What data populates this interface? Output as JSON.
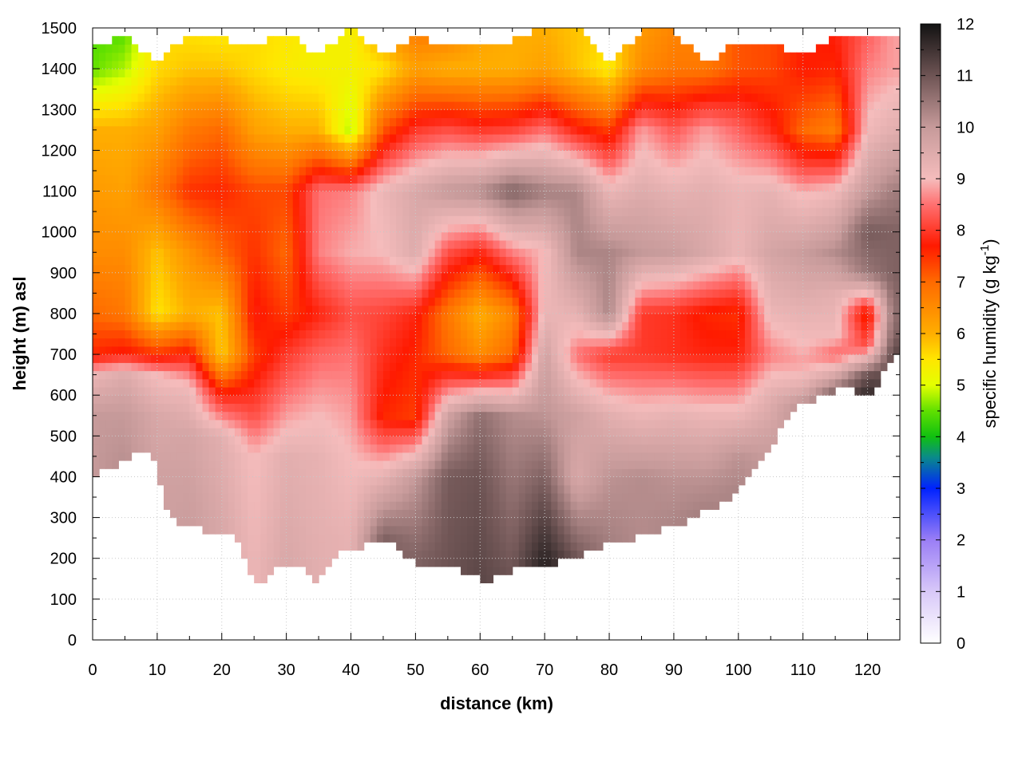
{
  "chart_data": {
    "type": "heatmap",
    "title": "",
    "xlabel": "distance (km)",
    "ylabel": "height (m) asl",
    "xlim": [
      0,
      125
    ],
    "ylim": [
      0,
      1500
    ],
    "x_ticks": [
      0,
      10,
      20,
      30,
      40,
      50,
      60,
      70,
      80,
      90,
      100,
      110,
      120
    ],
    "y_ticks": [
      0,
      100,
      200,
      300,
      400,
      500,
      600,
      700,
      800,
      900,
      1000,
      1100,
      1200,
      1300,
      1400,
      1500
    ],
    "grid": true,
    "colorbar": {
      "label_main": "specific humidity (g kg",
      "label_sup": "-1",
      "label_end": ")",
      "range": [
        0,
        12
      ],
      "ticks": [
        0,
        1,
        2,
        3,
        4,
        5,
        6,
        7,
        8,
        9,
        10,
        11,
        12
      ],
      "colormap": [
        {
          "v": 0,
          "c": "#ffffff"
        },
        {
          "v": 1,
          "c": "#d8c8f8"
        },
        {
          "v": 2,
          "c": "#9a7ef6"
        },
        {
          "v": 3,
          "c": "#0022ff"
        },
        {
          "v": 3.6,
          "c": "#0a8a8a"
        },
        {
          "v": 4,
          "c": "#10c010"
        },
        {
          "v": 4.5,
          "c": "#60e000"
        },
        {
          "v": 5,
          "c": "#e4ff00"
        },
        {
          "v": 5.5,
          "c": "#ffe600"
        },
        {
          "v": 6,
          "c": "#ffae00"
        },
        {
          "v": 7,
          "c": "#ff6a00"
        },
        {
          "v": 7.7,
          "c": "#ff1a00"
        },
        {
          "v": 8.5,
          "c": "#ff7070"
        },
        {
          "v": 9,
          "c": "#f5bcbc"
        },
        {
          "v": 10,
          "c": "#c69a9a"
        },
        {
          "v": 11,
          "c": "#6e5454"
        },
        {
          "v": 12,
          "c": "#121212"
        }
      ]
    },
    "terrain_height_m": {
      "x": [
        0,
        2,
        5,
        7,
        9,
        10,
        11,
        13,
        15,
        17,
        19,
        21,
        23,
        24,
        25,
        26,
        27,
        28,
        30,
        32,
        34,
        35,
        36,
        38,
        40,
        42,
        44,
        46,
        47,
        48,
        50,
        52,
        54,
        56,
        58,
        60,
        61,
        62,
        63,
        64,
        66,
        68,
        70,
        72,
        74,
        76,
        78,
        80,
        82,
        85,
        88,
        91,
        94,
        97,
        100,
        103,
        106,
        109,
        112,
        115,
        117,
        118,
        120,
        122,
        124
      ],
      "y": [
        400,
        420,
        440,
        460,
        450,
        430,
        330,
        290,
        270,
        275,
        255,
        265,
        230,
        170,
        150,
        140,
        150,
        185,
        190,
        180,
        150,
        145,
        170,
        210,
        225,
        230,
        250,
        240,
        225,
        205,
        190,
        180,
        170,
        175,
        165,
        155,
        140,
        145,
        165,
        160,
        175,
        185,
        190,
        190,
        195,
        210,
        225,
        235,
        240,
        255,
        270,
        285,
        310,
        330,
        370,
        430,
        500,
        575,
        590,
        610,
        630,
        605,
        600,
        640,
        700
      ]
    },
    "upper_gap_m": {
      "x": [
        0,
        5,
        7,
        10,
        14,
        18,
        24,
        30,
        35,
        40,
        45,
        50,
        55,
        60,
        65,
        70,
        75,
        80,
        85,
        90,
        95,
        100,
        105,
        110,
        115,
        120,
        124
      ],
      "y": [
        1450,
        1480,
        1440,
        1420,
        1470,
        1490,
        1450,
        1490,
        1430,
        1500,
        1430,
        1480,
        1450,
        1460,
        1470,
        1500,
        1500,
        1420,
        1490,
        1490,
        1410,
        1470,
        1460,
        1430,
        1480,
        1490,
        1480
      ]
    },
    "humidity_profiles": [
      {
        "x": 0,
        "z": [
          400,
          550,
          650,
          700,
          800,
          950,
          1100,
          1250,
          1400,
          1500
        ],
        "q": [
          10.0,
          10.0,
          9.2,
          7.6,
          7.0,
          6.5,
          6.3,
          6.0,
          4.5,
          4.4
        ]
      },
      {
        "x": 5,
        "z": [
          400,
          550,
          650,
          700,
          800,
          950,
          1100,
          1250,
          1400,
          1500
        ],
        "q": [
          10.2,
          10.0,
          9.5,
          7.8,
          6.8,
          6.5,
          6.2,
          6.0,
          4.8,
          4.4
        ]
      },
      {
        "x": 10,
        "z": [
          400,
          550,
          650,
          700,
          800,
          950,
          1100,
          1250,
          1400,
          1500
        ],
        "q": [
          9.8,
          9.6,
          9.0,
          7.5,
          5.5,
          5.8,
          6.8,
          6.2,
          5.6,
          5.6
        ]
      },
      {
        "x": 15,
        "z": [
          300,
          500,
          620,
          700,
          800,
          950,
          1100,
          1250,
          1400,
          1500
        ],
        "q": [
          9.9,
          9.7,
          9.1,
          7.8,
          6.0,
          6.4,
          7.5,
          6.8,
          5.8,
          5.5
        ]
      },
      {
        "x": 20,
        "z": [
          300,
          500,
          600,
          700,
          800,
          950,
          1100,
          1250,
          1400,
          1500
        ],
        "q": [
          9.6,
          9.4,
          7.8,
          5.7,
          5.8,
          7.0,
          7.6,
          7.0,
          5.8,
          5.4
        ]
      },
      {
        "x": 25,
        "z": [
          200,
          450,
          550,
          700,
          800,
          950,
          1100,
          1250,
          1400,
          1500
        ],
        "q": [
          9.2,
          9.0,
          8.2,
          7.4,
          7.8,
          7.5,
          7.3,
          6.2,
          5.6,
          5.6
        ]
      },
      {
        "x": 30,
        "z": [
          200,
          450,
          550,
          700,
          800,
          950,
          1100,
          1250,
          1400,
          1500
        ],
        "q": [
          9.6,
          9.4,
          8.8,
          8.0,
          7.4,
          7.0,
          7.3,
          6.0,
          5.4,
          5.5
        ]
      },
      {
        "x": 35,
        "z": [
          200,
          450,
          550,
          700,
          800,
          950,
          1100,
          1250,
          1400,
          1500
        ],
        "q": [
          9.4,
          9.3,
          9.0,
          8.4,
          7.8,
          8.6,
          8.5,
          6.0,
          5.3,
          5.3
        ]
      },
      {
        "x": 40,
        "z": [
          250,
          450,
          550,
          700,
          800,
          950,
          1100,
          1250,
          1400,
          1500
        ],
        "q": [
          9.3,
          9.0,
          8.8,
          8.5,
          8.2,
          8.9,
          8.6,
          4.8,
          5.3,
          5.3
        ]
      },
      {
        "x": 45,
        "z": [
          250,
          400,
          550,
          700,
          800,
          950,
          1100,
          1250,
          1400,
          1500
        ],
        "q": [
          10.8,
          9.3,
          7.6,
          7.9,
          8.1,
          9.0,
          9.2,
          7.2,
          5.5,
          6.3
        ]
      },
      {
        "x": 50,
        "z": [
          200,
          400,
          550,
          700,
          800,
          950,
          1100,
          1250,
          1400,
          1500
        ],
        "q": [
          10.8,
          10.0,
          7.4,
          7.6,
          7.8,
          9.5,
          9.6,
          8.0,
          6.2,
          6.8
        ]
      },
      {
        "x": 55,
        "z": [
          200,
          400,
          550,
          700,
          800,
          950,
          1100,
          1250,
          1400,
          1500
        ],
        "q": [
          11.0,
          10.9,
          9.8,
          7.0,
          6.8,
          8.2,
          10.0,
          8.2,
          6.0,
          6.8
        ]
      },
      {
        "x": 60,
        "z": [
          150,
          400,
          550,
          700,
          800,
          950,
          1100,
          1250,
          1400,
          1500
        ],
        "q": [
          11.2,
          11.0,
          10.6,
          6.5,
          6.0,
          7.8,
          10.2,
          8.0,
          6.0,
          6.2
        ]
      },
      {
        "x": 65,
        "z": [
          160,
          400,
          550,
          700,
          800,
          950,
          1100,
          1250,
          1400,
          1500
        ],
        "q": [
          11.0,
          10.5,
          10.2,
          7.0,
          6.6,
          8.6,
          10.8,
          8.1,
          6.0,
          6.0
        ]
      },
      {
        "x": 70,
        "z": [
          180,
          400,
          550,
          700,
          800,
          950,
          1100,
          1250,
          1400,
          1500
        ],
        "q": [
          11.8,
          10.8,
          10.1,
          9.8,
          9.2,
          9.0,
          10.4,
          8.5,
          6.2,
          6.0
        ]
      },
      {
        "x": 75,
        "z": [
          200,
          400,
          550,
          700,
          800,
          950,
          1100,
          1250,
          1400,
          1500
        ],
        "q": [
          11.0,
          9.6,
          9.8,
          8.5,
          9.3,
          10.3,
          10.3,
          7.8,
          5.8,
          5.8
        ]
      },
      {
        "x": 80,
        "z": [
          230,
          400,
          550,
          700,
          800,
          950,
          1100,
          1250,
          1400,
          1500
        ],
        "q": [
          10.4,
          10.1,
          9.4,
          8.0,
          10.3,
          10.3,
          9.2,
          7.4,
          5.4,
          5.6
        ]
      },
      {
        "x": 85,
        "z": [
          250,
          400,
          550,
          700,
          800,
          950,
          1100,
          1250,
          1400,
          1500
        ],
        "q": [
          10.2,
          10.2,
          9.2,
          8.0,
          8.0,
          10.0,
          9.5,
          8.8,
          6.5,
          6.3
        ]
      },
      {
        "x": 90,
        "z": [
          280,
          400,
          550,
          700,
          800,
          950,
          1100,
          1250,
          1400,
          1500
        ],
        "q": [
          10.3,
          10.1,
          9.3,
          7.9,
          7.9,
          9.9,
          9.3,
          8.3,
          6.8,
          6.6
        ]
      },
      {
        "x": 95,
        "z": [
          310,
          400,
          550,
          700,
          800,
          950,
          1100,
          1250,
          1400,
          1500
        ],
        "q": [
          10.4,
          10.1,
          9.2,
          7.8,
          7.6,
          9.6,
          9.4,
          8.8,
          6.8,
          6.6
        ]
      },
      {
        "x": 100,
        "z": [
          370,
          450,
          550,
          700,
          800,
          950,
          1100,
          1250,
          1400,
          1500
        ],
        "q": [
          10.3,
          10.1,
          9.2,
          7.8,
          7.5,
          9.2,
          9.2,
          8.4,
          7.2,
          7.2
        ]
      },
      {
        "x": 105,
        "z": [
          430,
          500,
          600,
          700,
          800,
          950,
          1100,
          1250,
          1400,
          1500
        ],
        "q": [
          10.0,
          9.8,
          9.4,
          8.6,
          9.2,
          9.7,
          9.3,
          7.9,
          7.3,
          7.3
        ]
      },
      {
        "x": 110,
        "z": [
          575,
          620,
          680,
          720,
          800,
          950,
          1100,
          1250,
          1400,
          1500
        ],
        "q": [
          10.2,
          9.4,
          8.8,
          9.0,
          9.3,
          9.9,
          8.9,
          7.0,
          7.7,
          7.6
        ]
      },
      {
        "x": 115,
        "z": [
          610,
          650,
          700,
          750,
          850,
          950,
          1100,
          1250,
          1400,
          1500
        ],
        "q": [
          10.7,
          9.6,
          8.4,
          9.1,
          9.4,
          10.2,
          9.1,
          6.7,
          7.6,
          7.8
        ]
      },
      {
        "x": 120,
        "z": [
          600,
          650,
          720,
          800,
          900,
          1000,
          1100,
          1250,
          1400,
          1500
        ],
        "q": [
          11.7,
          11.0,
          8.2,
          7.4,
          10.5,
          10.9,
          10.0,
          9.1,
          8.6,
          8.3
        ]
      },
      {
        "x": 124,
        "z": [
          700,
          750,
          800,
          900,
          1000,
          1100,
          1250,
          1400,
          1500
        ],
        "q": [
          11.2,
          10.8,
          10.6,
          10.8,
          10.8,
          10.4,
          9.4,
          8.8,
          8.8
        ]
      }
    ]
  }
}
